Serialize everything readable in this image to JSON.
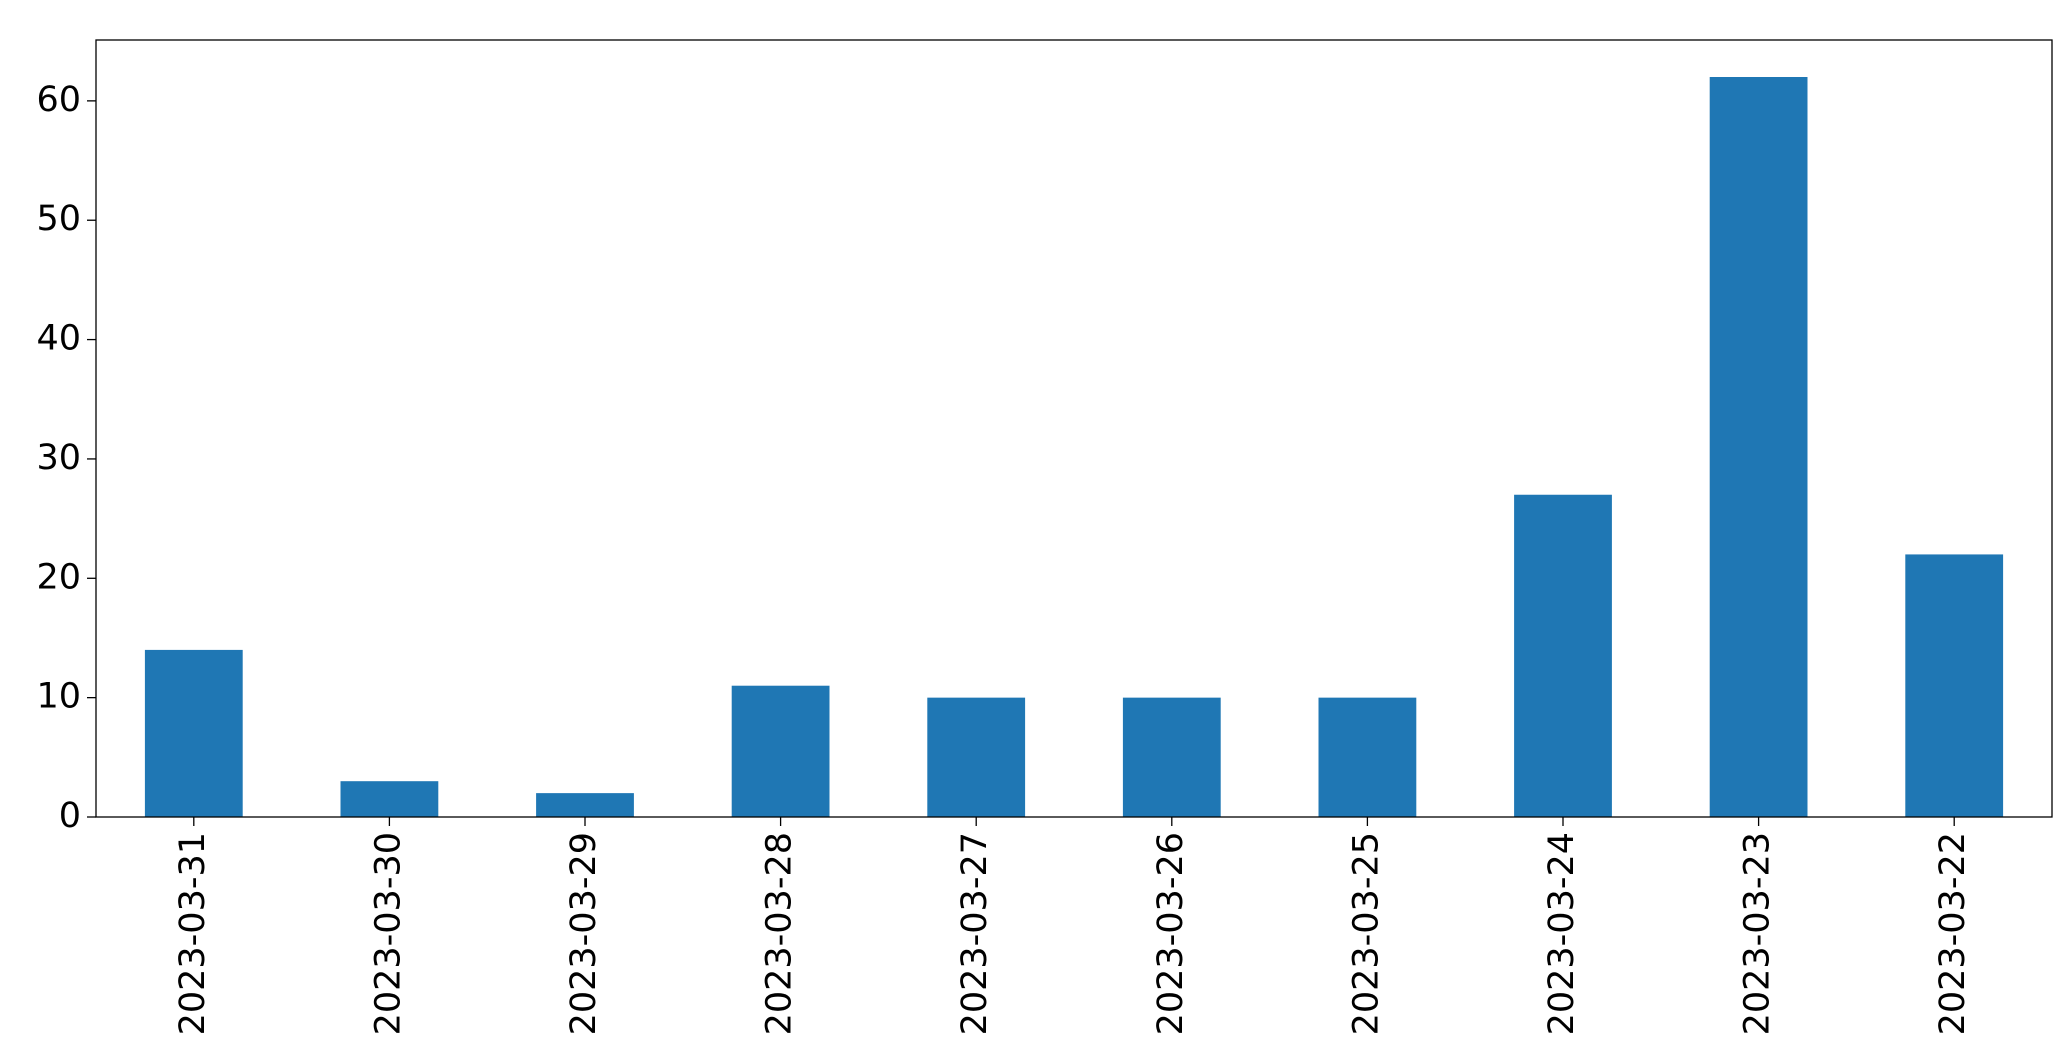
{
  "chart_data": {
    "type": "bar",
    "categories": [
      "2023-03-31",
      "2023-03-30",
      "2023-03-29",
      "2023-03-28",
      "2023-03-27",
      "2023-03-26",
      "2023-03-25",
      "2023-03-24",
      "2023-03-23",
      "2023-03-22"
    ],
    "values": [
      14,
      3,
      2,
      11,
      10,
      10,
      10,
      27,
      62,
      22
    ],
    "color": "#1f77b4",
    "ylim": [
      0,
      65.1
    ],
    "yticks": [
      0,
      10,
      20,
      30,
      40,
      50,
      60
    ],
    "grid": false
  }
}
